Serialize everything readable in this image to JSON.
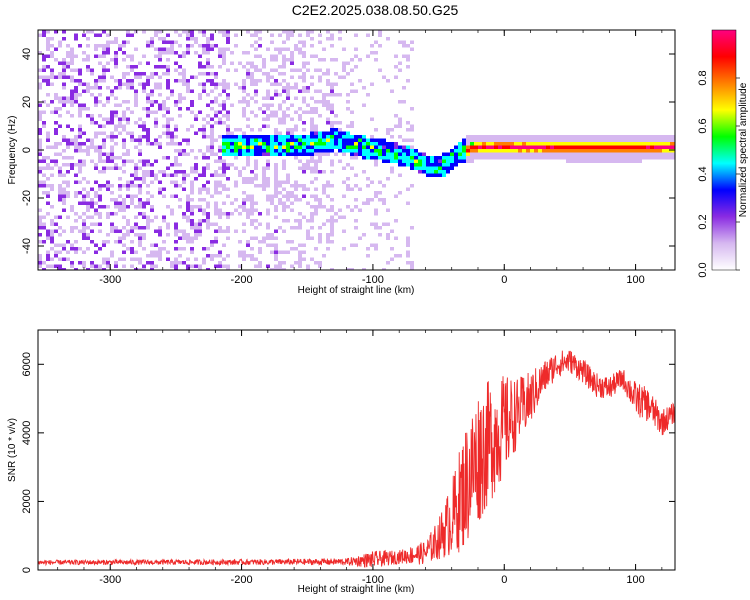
{
  "title": "C2E2.2025.038.08.50.G25",
  "chart_data": [
    {
      "type": "heatmap",
      "xlabel": "Height of straight line (km)",
      "ylabel": "Frequency (Hz)",
      "xlim": [
        -355,
        130
      ],
      "ylim": [
        -50,
        50
      ],
      "xticks": [
        -300,
        -200,
        -100,
        0,
        100
      ],
      "yticks": [
        -40,
        -20,
        0,
        20,
        40
      ],
      "colorbar": {
        "label": "Normalized spectral amplitude",
        "range": [
          0.0,
          1.0
        ],
        "ticks": [
          "0.0",
          "0.2",
          "0.4",
          "0.6",
          "0.8"
        ],
        "colors": [
          "#ffffff",
          "#d6b8f0",
          "#8a2be2",
          "#0000ff",
          "#00ffff",
          "#00ff00",
          "#ffff00",
          "#ff8000",
          "#ff0000",
          "#ff0080"
        ]
      },
      "ridge": {
        "x": [
          -210,
          -180,
          -150,
          -130,
          -110,
          -90,
          -70,
          -55,
          -45,
          -35,
          -20,
          0,
          50,
          100,
          130
        ],
        "freq": [
          2,
          3,
          3,
          5,
          2,
          0,
          -3,
          -7,
          -5,
          0,
          2,
          2,
          1.5,
          1.5,
          2
        ]
      },
      "grid": false
    },
    {
      "type": "line",
      "xlabel": "Height of straight line (km)",
      "ylabel": "SNR (10 * v/v)",
      "xlim": [
        -355,
        130
      ],
      "ylim": [
        0,
        7000
      ],
      "xticks": [
        -300,
        -200,
        -100,
        0,
        100
      ],
      "yticks": [
        0,
        2000,
        4000,
        6000
      ],
      "color": "#ee2a2a",
      "envelope": {
        "x": [
          -355,
          -200,
          -120,
          -100,
          -80,
          -60,
          -50,
          -40,
          -30,
          -20,
          -10,
          0,
          10,
          20,
          30,
          40,
          50,
          60,
          70,
          80,
          90,
          100,
          110,
          120,
          130
        ],
        "mean": [
          220,
          230,
          240,
          300,
          380,
          500,
          900,
          1500,
          2400,
          3300,
          3800,
          4200,
          4600,
          5000,
          5600,
          6000,
          6100,
          5800,
          5400,
          5300,
          5600,
          5000,
          4800,
          4300,
          4600
        ],
        "spread": [
          70,
          80,
          100,
          250,
          200,
          350,
          600,
          1100,
          1800,
          2000,
          1800,
          1500,
          1000,
          800,
          500,
          400,
          350,
          350,
          350,
          350,
          300,
          500,
          500,
          400,
          300
        ]
      },
      "grid": false
    }
  ]
}
